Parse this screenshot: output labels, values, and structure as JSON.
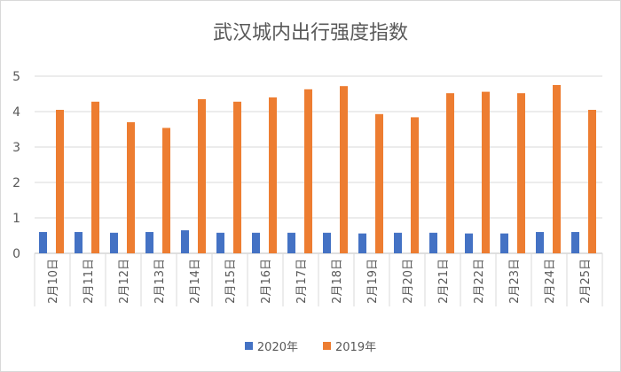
{
  "chart_data": {
    "type": "bar",
    "title": "武汉城内出行强度指数",
    "xlabel": "",
    "ylabel": "",
    "ylim": [
      0,
      5
    ],
    "yticks": [
      "0",
      "1",
      "2",
      "3",
      "4",
      "5"
    ],
    "grid": true,
    "legend_position": "bottom",
    "categories": [
      "2月10日",
      "2月11日",
      "2月12日",
      "2月13日",
      "2月14日",
      "2月15日",
      "2月16日",
      "2月17日",
      "2月18日",
      "2月19日",
      "2月20日",
      "2月21日",
      "2月22日",
      "2月23日",
      "2月24日",
      "2月25日"
    ],
    "series": [
      {
        "name": "2020年",
        "color": "#4472c4",
        "values": [
          0.6,
          0.6,
          0.58,
          0.6,
          0.65,
          0.58,
          0.58,
          0.58,
          0.58,
          0.56,
          0.58,
          0.58,
          0.56,
          0.56,
          0.6,
          0.6
        ]
      },
      {
        "name": "2019年",
        "color": "#ed7d31",
        "values": [
          4.05,
          4.28,
          3.7,
          3.54,
          4.35,
          4.28,
          4.4,
          4.63,
          4.72,
          3.93,
          3.84,
          4.52,
          4.56,
          4.52,
          4.75,
          4.05
        ]
      }
    ]
  }
}
